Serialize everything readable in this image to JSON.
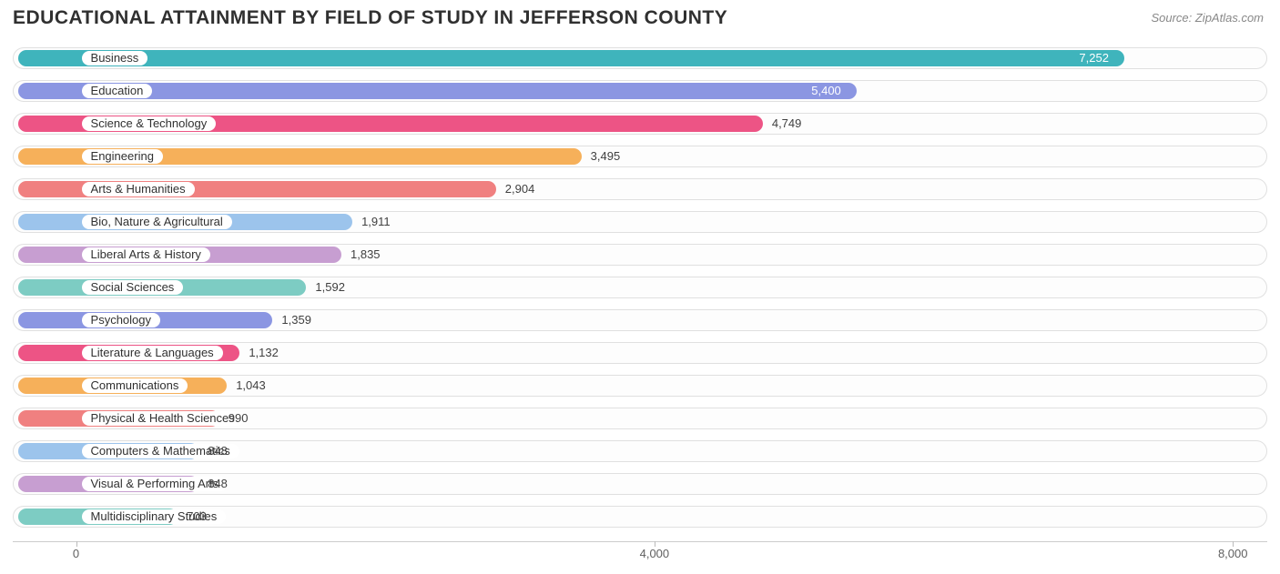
{
  "title": "EDUCATIONAL ATTAINMENT BY FIELD OF STUDY IN JEFFERSON COUNTY",
  "source": "Source: ZipAtlas.com",
  "chart": {
    "type": "bar-horizontal",
    "background_color": "#ffffff",
    "track_border_color": "#e0e0e0",
    "track_fill_color": "#fdfdfd",
    "label_chip_bg": "#ffffff",
    "title_color": "#303030",
    "title_fontsize": 21,
    "value_fontsize": 13,
    "label_fontsize": 13,
    "xmin": -400,
    "xmax": 8200,
    "xticks": [
      {
        "value": 0,
        "label": "0"
      },
      {
        "value": 4000,
        "label": "4,000"
      },
      {
        "value": 8000,
        "label": "8,000"
      }
    ],
    "bars": [
      {
        "label": "Business",
        "value": 7252,
        "display": "7,252",
        "color": "#3fb4bc",
        "value_inside": true
      },
      {
        "label": "Education",
        "value": 5400,
        "display": "5,400",
        "color": "#8b96e2",
        "value_inside": true
      },
      {
        "label": "Science & Technology",
        "value": 4749,
        "display": "4,749",
        "color": "#ed5485",
        "value_inside": false
      },
      {
        "label": "Engineering",
        "value": 3495,
        "display": "3,495",
        "color": "#f6b05a",
        "value_inside": false
      },
      {
        "label": "Arts & Humanities",
        "value": 2904,
        "display": "2,904",
        "color": "#f08080",
        "value_inside": false
      },
      {
        "label": "Bio, Nature & Agricultural",
        "value": 1911,
        "display": "1,911",
        "color": "#9cc4ec",
        "value_inside": false
      },
      {
        "label": "Liberal Arts & History",
        "value": 1835,
        "display": "1,835",
        "color": "#c79ed1",
        "value_inside": false
      },
      {
        "label": "Social Sciences",
        "value": 1592,
        "display": "1,592",
        "color": "#7dccc3",
        "value_inside": false
      },
      {
        "label": "Psychology",
        "value": 1359,
        "display": "1,359",
        "color": "#8b96e2",
        "value_inside": false
      },
      {
        "label": "Literature & Languages",
        "value": 1132,
        "display": "1,132",
        "color": "#ed5485",
        "value_inside": false
      },
      {
        "label": "Communications",
        "value": 1043,
        "display": "1,043",
        "color": "#f6b05a",
        "value_inside": false
      },
      {
        "label": "Physical & Health Sciences",
        "value": 990,
        "display": "990",
        "color": "#f08080",
        "value_inside": false
      },
      {
        "label": "Computers & Mathematics",
        "value": 848,
        "display": "848",
        "color": "#9cc4ec",
        "value_inside": false
      },
      {
        "label": "Visual & Performing Arts",
        "value": 848,
        "display": "848",
        "color": "#c79ed1",
        "value_inside": false
      },
      {
        "label": "Multidisciplinary Studies",
        "value": 703,
        "display": "703",
        "color": "#7dccc3",
        "value_inside": false
      }
    ]
  }
}
